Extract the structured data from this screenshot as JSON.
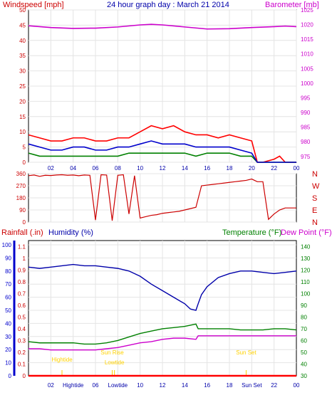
{
  "chart_data": [
    {
      "type": "line",
      "panel": "wind-baro",
      "title": "24 hour graph day : March 21 2014",
      "left_axis_label": "Windspeed [mph]",
      "right_axis_label": "Barometer [mb]",
      "x_ticks": [
        "02",
        "04",
        "06",
        "08",
        "10",
        "12",
        "14",
        "16",
        "18",
        "20",
        "22",
        "00"
      ],
      "left_ticks": [
        0,
        5,
        10,
        15,
        20,
        25,
        30,
        35,
        40,
        45,
        50
      ],
      "right_ticks": [
        975,
        980,
        985,
        990,
        995,
        1000,
        1005,
        1010,
        1015,
        1020,
        1025
      ],
      "left_range": [
        0,
        50
      ],
      "right_range": [
        973,
        1025
      ],
      "series": [
        {
          "name": "Windspeed [mph]",
          "color": "#ff0000",
          "axis": "left",
          "x": [
            0,
            1,
            2,
            3,
            4,
            5,
            6,
            7,
            8,
            9,
            10,
            11,
            12,
            13,
            14,
            15,
            16,
            17,
            18,
            19,
            20,
            20.5,
            21,
            22,
            22.5,
            23,
            24
          ],
          "y": [
            9,
            8,
            7,
            7,
            8,
            8,
            7,
            7,
            8,
            8,
            10,
            12,
            11,
            12,
            10,
            9,
            9,
            8,
            9,
            8,
            7,
            0,
            0,
            1,
            2,
            0,
            0
          ]
        },
        {
          "name": "Gust",
          "color": "#008000",
          "axis": "left",
          "x": [
            0,
            1,
            2,
            3,
            4,
            5,
            6,
            7,
            8,
            9,
            10,
            11,
            12,
            13,
            14,
            15,
            16,
            17,
            18,
            19,
            20,
            20.5,
            24
          ],
          "y": [
            3,
            2,
            2,
            2,
            2,
            2,
            2,
            2,
            2,
            3,
            3,
            3,
            3,
            3,
            3,
            2,
            3,
            3,
            3,
            2,
            2,
            0,
            0
          ]
        },
        {
          "name": "Average",
          "color": "#0000cc",
          "axis": "left",
          "x": [
            0,
            1,
            2,
            3,
            4,
            5,
            6,
            7,
            8,
            9,
            10,
            11,
            12,
            13,
            14,
            15,
            16,
            17,
            18,
            19,
            20,
            20.5,
            24
          ],
          "y": [
            6,
            5,
            4,
            4,
            5,
            5,
            4,
            4,
            5,
            5,
            6,
            7,
            6,
            6,
            6,
            5,
            5,
            5,
            5,
            4,
            3,
            0,
            0
          ]
        },
        {
          "name": "Barometer [mb]",
          "color": "#cc00cc",
          "axis": "right",
          "x": [
            0,
            2,
            4,
            6,
            8,
            10,
            11,
            12,
            14,
            16,
            18,
            20,
            22,
            23,
            24
          ],
          "y": [
            1019.6,
            1019.0,
            1018.7,
            1018.8,
            1019.2,
            1019.9,
            1020.1,
            1019.9,
            1019.2,
            1018.5,
            1018.6,
            1019.0,
            1019.3,
            1019.5,
            1019.3
          ]
        }
      ]
    },
    {
      "type": "scatter",
      "panel": "wind-direction",
      "left_ticks": [
        0,
        90,
        180,
        270,
        360
      ],
      "compass_labels": [
        "N",
        "W",
        "S",
        "E",
        "N"
      ],
      "range": [
        0,
        360
      ],
      "series": [
        {
          "name": "Wind direction",
          "color": "#cc0000",
          "x": [
            0,
            0.5,
            1,
            1.5,
            2,
            2.5,
            3,
            3.5,
            4,
            4.5,
            5,
            5.5,
            6,
            6.5,
            7,
            7.5,
            8,
            8.5,
            9,
            9.5,
            10,
            10.5,
            11,
            11.5,
            12,
            12.5,
            13,
            13.5,
            14,
            14.5,
            15,
            15.5,
            16,
            16.5,
            17,
            17.5,
            18,
            18.5,
            19,
            19.5,
            20,
            20.5,
            21,
            21.5,
            22,
            22.5,
            23,
            23.5,
            24
          ],
          "y": [
            345,
            350,
            340,
            348,
            346,
            350,
            352,
            348,
            350,
            345,
            350,
            348,
            15,
            352,
            350,
            10,
            348,
            352,
            60,
            345,
            30,
            40,
            50,
            55,
            65,
            70,
            75,
            80,
            90,
            100,
            110,
            270,
            275,
            280,
            285,
            290,
            295,
            300,
            305,
            310,
            320,
            300,
            300,
            20,
            60,
            90,
            105,
            105,
            105
          ]
        }
      ]
    },
    {
      "type": "line",
      "panel": "rain-humidity-temperature",
      "left_axis_labels": [
        "Rainfall (.in)",
        "Humidity (%)"
      ],
      "right_axis_labels": [
        "Temperature (°F)",
        "Dew Point (°F)"
      ],
      "rain_ticks": [
        0,
        0.1,
        0.2,
        0.3,
        0.4,
        0.5,
        0.6,
        0.7,
        0.8,
        0.9,
        1,
        1.1
      ],
      "humidity_ticks": [
        0,
        10,
        20,
        30,
        40,
        50,
        60,
        70,
        80,
        90,
        100
      ],
      "temp_ticks": [
        30,
        40,
        50,
        60,
        70,
        80,
        90,
        100,
        110,
        120,
        130,
        140
      ],
      "humidity_range": [
        0,
        100
      ],
      "temp_range": [
        30,
        145
      ],
      "series": [
        {
          "name": "Humidity (%)",
          "color": "#0000aa",
          "axis": "humidity",
          "x": [
            0,
            1,
            2,
            3,
            4,
            5,
            6,
            7,
            8,
            9,
            10,
            11,
            12,
            13,
            14,
            14.5,
            15,
            15.2,
            15.5,
            16,
            17,
            18,
            19,
            20,
            21,
            22,
            23,
            24
          ],
          "y": [
            83,
            82,
            83,
            84,
            85,
            84,
            84,
            83,
            82,
            80,
            76,
            70,
            65,
            60,
            55,
            51,
            50,
            55,
            62,
            68,
            75,
            78,
            80,
            80,
            79,
            78,
            79,
            80
          ]
        },
        {
          "name": "Temperature (°F)",
          "color": "#008000",
          "axis": "temp",
          "x": [
            0,
            1,
            2,
            3,
            4,
            5,
            6,
            7,
            8,
            9,
            10,
            11,
            12,
            13,
            14,
            15,
            15.2,
            16,
            17,
            18,
            19,
            20,
            21,
            22,
            23,
            24
          ],
          "y": [
            59,
            58,
            58,
            58,
            58,
            57,
            57,
            58,
            60,
            63,
            66,
            68,
            70,
            71,
            72,
            74,
            70,
            70,
            70,
            70,
            69,
            69,
            69,
            70,
            70,
            69
          ]
        },
        {
          "name": "Dew Point (°F)",
          "color": "#cc00cc",
          "axis": "temp",
          "x": [
            0,
            1,
            2,
            3,
            4,
            5,
            6,
            7,
            8,
            9,
            10,
            11,
            12,
            13,
            14,
            15,
            15.2,
            16,
            17,
            18,
            19,
            20,
            21,
            22,
            23,
            24
          ],
          "y": [
            53,
            53,
            52,
            52,
            52,
            52,
            52,
            53,
            54,
            56,
            58,
            59,
            61,
            62,
            62,
            61,
            64,
            64,
            64,
            64,
            64,
            64,
            64,
            64,
            64,
            64
          ]
        },
        {
          "name": "Rainfall (.in)",
          "color": "#ff0000",
          "axis": "rain",
          "x": [
            0,
            24
          ],
          "y": [
            0,
            0
          ]
        }
      ],
      "events": [
        {
          "label": "Sun Rise",
          "x": 7.5
        },
        {
          "label": "Lowtide",
          "x": 7.7
        },
        {
          "label": "Hightide",
          "x": 3.0
        },
        {
          "label": "Sun Set",
          "x": 19.5
        }
      ],
      "bottom_labels": [
        "02",
        "Hightide",
        "06",
        "Lowtide",
        "10",
        "12",
        "14",
        "16",
        "18",
        "Sun Set",
        "22",
        "00"
      ]
    }
  ]
}
